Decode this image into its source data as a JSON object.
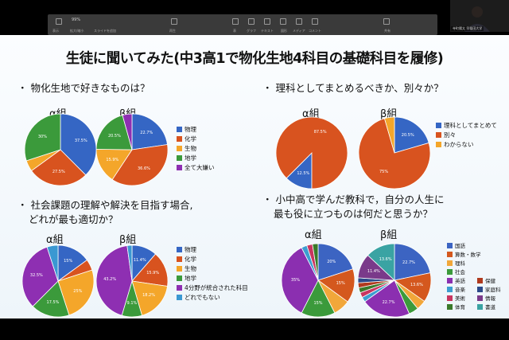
{
  "toolbar": {
    "zoom": "99%",
    "labels": [
      "表示",
      "拡大/縮小",
      "スライドを追加",
      "再生",
      "表",
      "グラフ",
      "テキスト",
      "図形",
      "メディア",
      "コメント",
      "共有"
    ]
  },
  "webcam": {
    "name": "寺町陽太 早稲田大学"
  },
  "slide": {
    "title": "生徒に聞いてみた(中3高1で物化生地4科目の基礎科目を履修)",
    "q1": "・ 物化生地で好きなものは？",
    "q2": "・ 理科としてまとめるべきか、別々か？",
    "q3": [
      "・ 社会課題の理解や解決を目指す場合,",
      "どれが最も適切か？"
    ],
    "q4": [
      "・ 小中高で学んだ教科で，自分の人生に",
      "最も役に立つものは何だと思うか？"
    ],
    "group_a": "α組",
    "group_b": "β組",
    "legend1": [
      "物理",
      "化学",
      "生物",
      "地学",
      "全て大嫌い"
    ],
    "legend2": [
      "理科としてまとめて",
      "別々",
      "わからない"
    ],
    "legend3": [
      "物理",
      "化学",
      "生物",
      "地学",
      "4分野が統合された科目",
      "どれでもない"
    ],
    "legend4_left": [
      "国語",
      "算数・数学",
      "理科",
      "社会",
      "英語",
      "音楽",
      "美術",
      "体育"
    ],
    "legend4_right": [
      "保健",
      "家庭科",
      "情報",
      "書道"
    ]
  },
  "colors": {
    "physics": "#3566c4",
    "chem": "#d8531f",
    "bio": "#f4a62a",
    "earth": "#3b9a3b",
    "allhate": "#8e2fb2",
    "integrated": "#8e2fb2",
    "none": "#3a98d2",
    "kokugo": "#3c64c2",
    "math": "#d4581e",
    "rika": "#f1a73a",
    "shakai": "#3b9a3b",
    "eigo": "#8b2fb0",
    "ongaku": "#3c9ed0",
    "bijutsu": "#c83560",
    "taiiku": "#3a7a2a",
    "hoken": "#b03a1e",
    "katei": "#2c4a8a",
    "jouhou": "#7a3a8a",
    "shodo": "#3aa3a3"
  },
  "chart_data": [
    {
      "type": "pie",
      "title": "α組",
      "labels": [
        "物理",
        "化学",
        "生物",
        "地学"
      ],
      "values": [
        37.5,
        27.5,
        5,
        30
      ]
    },
    {
      "type": "pie",
      "title": "β組",
      "labels": [
        "物理",
        "化学",
        "生物",
        "地学",
        "全て大嫌い"
      ],
      "values": [
        22.7,
        36.6,
        15.9,
        20.5,
        4.3
      ]
    },
    {
      "type": "pie",
      "title": "α組",
      "labels": [
        "理科としてまとめて",
        "別々",
        "わからない"
      ],
      "values": [
        12.5,
        87.5,
        0
      ]
    },
    {
      "type": "pie",
      "title": "β組",
      "labels": [
        "理科としてまとめて",
        "別々",
        "わからない"
      ],
      "values": [
        20.5,
        75,
        4.5
      ]
    },
    {
      "type": "pie",
      "title": "α組",
      "labels": [
        "物理",
        "化学",
        "生物",
        "地学",
        "4分野が統合された科目",
        "どれでもない"
      ],
      "values": [
        15,
        5,
        25,
        17.5,
        32.5,
        5
      ]
    },
    {
      "type": "pie",
      "title": "β組",
      "labels": [
        "物理",
        "化学",
        "生物",
        "地学",
        "4分野が統合された科目",
        "どれでもない"
      ],
      "values": [
        11.4,
        15.9,
        18.2,
        9.1,
        43.2,
        2.2
      ]
    },
    {
      "type": "pie",
      "title": "α組",
      "labels": [
        "国語",
        "算数・数学",
        "理科",
        "社会",
        "英語",
        "音楽",
        "美術",
        "体育"
      ],
      "values": [
        20,
        15,
        7.5,
        15,
        35,
        2.5,
        2.5,
        2.5
      ]
    },
    {
      "type": "pie",
      "title": "β組",
      "labels": [
        "国語",
        "算数・数学",
        "理科",
        "社会",
        "英語",
        "音楽",
        "美術",
        "体育",
        "保健",
        "家庭科",
        "情報",
        "書道"
      ],
      "values": [
        22.7,
        13.6,
        4.5,
        4.5,
        22.7,
        2.3,
        2.3,
        2.3,
        2.3,
        2.3,
        11.4,
        13.6
      ]
    }
  ]
}
